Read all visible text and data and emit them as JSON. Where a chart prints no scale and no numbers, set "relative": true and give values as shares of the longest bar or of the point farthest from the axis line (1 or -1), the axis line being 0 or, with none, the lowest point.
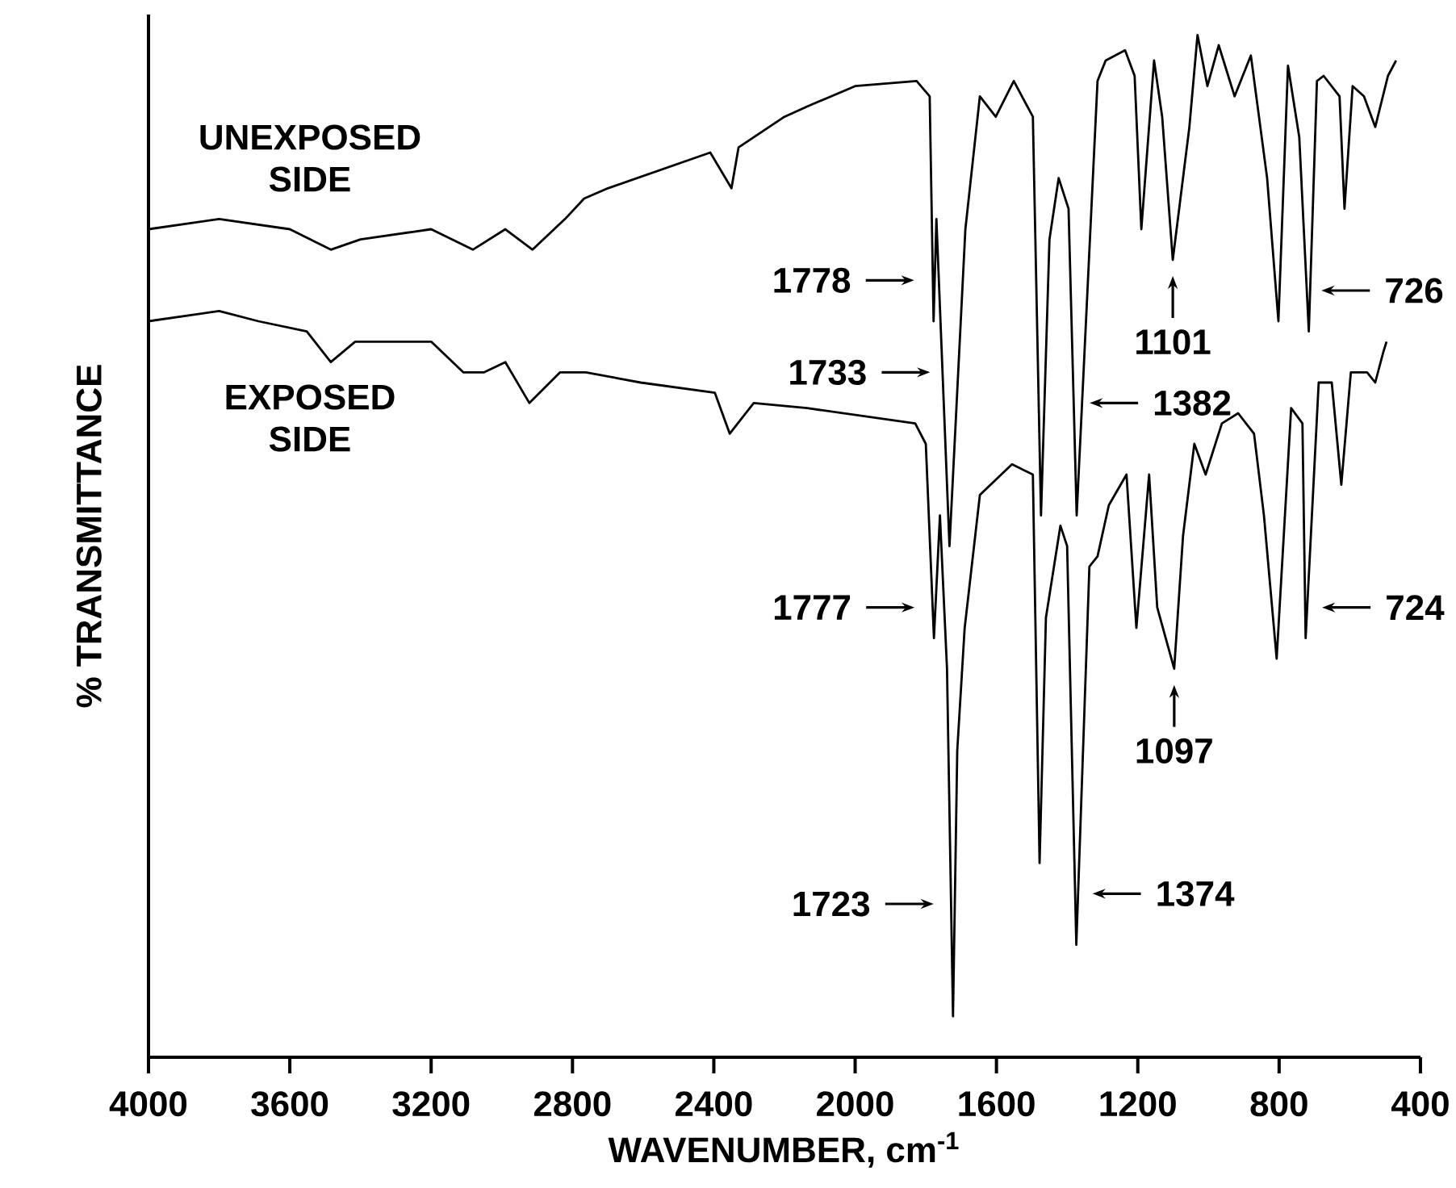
{
  "chart_data": {
    "type": "line",
    "relative": true,
    "xlabel": "WAVENUMBER, cm$^{-1}$",
    "ylabel": "% TRANSMITTANCE",
    "xlim": [
      4000,
      400
    ],
    "xticks": [
      4000,
      3600,
      3200,
      2800,
      2400,
      2000,
      1600,
      1200,
      800,
      400
    ],
    "series": [
      {
        "name": "UNEXPOSED SIDE",
        "color": "#000000",
        "x": [
          4000,
          3800,
          3600,
          3484,
          3400,
          3200,
          3082,
          2990,
          2913,
          2821,
          2767,
          2700,
          2410,
          2350,
          2330,
          2200,
          2136,
          2000,
          1826,
          1789,
          1778,
          1770,
          1733,
          1688,
          1647,
          1602,
          1551,
          1497,
          1474,
          1450,
          1424,
          1396,
          1373,
          1314,
          1291,
          1236,
          1209,
          1190,
          1154,
          1131,
          1101,
          1054,
          1031,
          1003,
          971,
          926,
          880,
          834,
          802,
          775,
          743,
          716,
          693,
          674,
          629,
          615,
          592,
          560,
          528,
          492,
          469
        ],
        "values": [
          0.81,
          0.82,
          0.81,
          0.79,
          0.8,
          0.81,
          0.79,
          0.81,
          0.79,
          0.82,
          0.84,
          0.85,
          0.885,
          0.85,
          0.89,
          0.92,
          0.93,
          0.95,
          0.955,
          0.94,
          0.72,
          0.82,
          0.5,
          0.81,
          0.94,
          0.92,
          0.955,
          0.92,
          0.53,
          0.8,
          0.86,
          0.83,
          0.53,
          0.955,
          0.975,
          0.985,
          0.96,
          0.81,
          0.975,
          0.92,
          0.78,
          0.91,
          1.0,
          0.95,
          0.99,
          0.94,
          0.98,
          0.86,
          0.72,
          0.97,
          0.9,
          0.71,
          0.955,
          0.96,
          0.94,
          0.83,
          0.95,
          0.94,
          0.91,
          0.96,
          0.975
        ]
      },
      {
        "name": "EXPOSED SIDE",
        "color": "#000000",
        "x": [
          4000,
          3800,
          3689,
          3552,
          3484,
          3415,
          3200,
          3109,
          3050,
          2990,
          2922,
          2835,
          2762,
          2607,
          2397,
          2355,
          2287,
          2136,
          1830,
          1800,
          1777,
          1760,
          1740,
          1723,
          1711,
          1690,
          1680,
          1647,
          1556,
          1497,
          1478,
          1460,
          1419,
          1400,
          1374,
          1337,
          1314,
          1282,
          1232,
          1204,
          1168,
          1145,
          1097,
          1072,
          1040,
          1008,
          962,
          916,
          871,
          843,
          807,
          766,
          734,
          725,
          688,
          651,
          624,
          597,
          551,
          528,
          505,
          496
        ],
        "values": [
          0.72,
          0.73,
          0.72,
          0.71,
          0.68,
          0.7,
          0.7,
          0.67,
          0.67,
          0.68,
          0.64,
          0.67,
          0.67,
          0.66,
          0.65,
          0.61,
          0.64,
          0.635,
          0.62,
          0.6,
          0.41,
          0.53,
          0.38,
          0.04,
          0.3,
          0.42,
          0.45,
          0.55,
          0.58,
          0.57,
          0.19,
          0.43,
          0.52,
          0.5,
          0.11,
          0.48,
          0.49,
          0.54,
          0.57,
          0.42,
          0.57,
          0.44,
          0.38,
          0.51,
          0.6,
          0.57,
          0.62,
          0.63,
          0.61,
          0.53,
          0.39,
          0.635,
          0.62,
          0.41,
          0.66,
          0.66,
          0.56,
          0.67,
          0.67,
          0.66,
          0.69,
          0.7
        ]
      }
    ],
    "annotations": [
      {
        "text": "1778",
        "x": 1778,
        "y": 0.76
      },
      {
        "text": "1733",
        "x": 1733,
        "y": 0.67
      },
      {
        "text": "1382",
        "x": 1382,
        "y": 0.64
      },
      {
        "text": "1101",
        "x": 1101,
        "y": 0.78
      },
      {
        "text": "726",
        "x": 726,
        "y": 0.75
      },
      {
        "text": "1777",
        "x": 1777,
        "y": 0.44
      },
      {
        "text": "1723",
        "x": 1723,
        "y": 0.15
      },
      {
        "text": "1374",
        "x": 1374,
        "y": 0.16
      },
      {
        "text": "1097",
        "x": 1097,
        "y": 0.38
      },
      {
        "text": "724",
        "x": 724,
        "y": 0.44
      }
    ]
  }
}
